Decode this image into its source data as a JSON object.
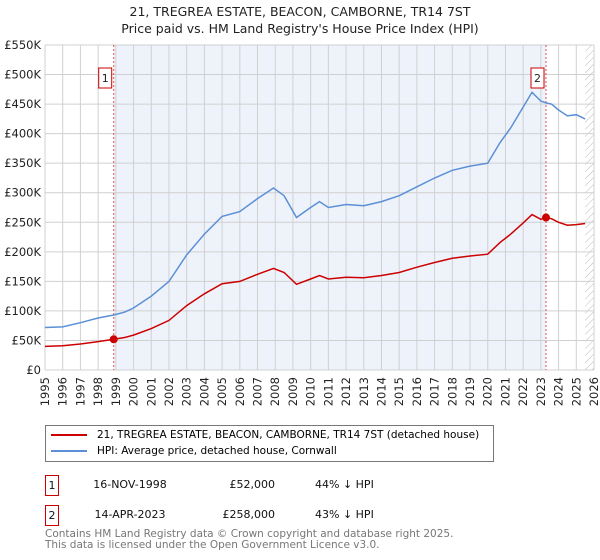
{
  "chart_data": {
    "type": "line",
    "title": "21, TREGREA ESTATE, BEACON, CAMBORNE, TR14 7ST",
    "subtitle": "Price paid vs. HM Land Registry's House Price Index (HPI)",
    "xlim": [
      1995,
      2026
    ],
    "ylim": [
      0,
      550000
    ],
    "x_ticks": [
      "1995",
      "1996",
      "1997",
      "1998",
      "1999",
      "2000",
      "2001",
      "2002",
      "2003",
      "2004",
      "2005",
      "2006",
      "2007",
      "2008",
      "2009",
      "2010",
      "2011",
      "2012",
      "2013",
      "2014",
      "2015",
      "2016",
      "2017",
      "2018",
      "2019",
      "2020",
      "2021",
      "2022",
      "2023",
      "2024",
      "2025",
      "2026"
    ],
    "y_ticks": [
      {
        "value": 0,
        "label": "£0"
      },
      {
        "value": 50000,
        "label": "£50K"
      },
      {
        "value": 100000,
        "label": "£100K"
      },
      {
        "value": 150000,
        "label": "£150K"
      },
      {
        "value": 200000,
        "label": "£200K"
      },
      {
        "value": 250000,
        "label": "£250K"
      },
      {
        "value": 300000,
        "label": "£300K"
      },
      {
        "value": 350000,
        "label": "£350K"
      },
      {
        "value": 400000,
        "label": "£400K"
      },
      {
        "value": 450000,
        "label": "£450K"
      },
      {
        "value": 500000,
        "label": "£500K"
      },
      {
        "value": 550000,
        "label": "£550K"
      }
    ],
    "grid": true,
    "series": [
      {
        "name": "21, TREGREA ESTATE, BEACON, CAMBORNE, TR14 7ST (detached house)",
        "color": "#cc0000",
        "x": [
          1995,
          1996,
          1997,
          1998,
          1998.88,
          1999.5,
          2000,
          2001,
          2002,
          2003,
          2004,
          2005,
          2006,
          2007,
          2007.9,
          2008.5,
          2009.2,
          2010,
          2010.5,
          2011,
          2012,
          2013,
          2014,
          2015,
          2016,
          2017,
          2018,
          2019,
          2020,
          2020.7,
          2021.3,
          2022,
          2022.5,
          2023,
          2023.29,
          2023.6,
          2024,
          2024.5,
          2025,
          2025.5
        ],
        "y": [
          40000,
          41000,
          44000,
          48000,
          52000,
          55000,
          59000,
          70000,
          84000,
          109000,
          129000,
          146000,
          150000,
          162000,
          172000,
          165000,
          145000,
          154000,
          160000,
          154000,
          157000,
          156000,
          160000,
          165000,
          174000,
          182000,
          189000,
          193000,
          196000,
          216000,
          230000,
          249000,
          263000,
          255000,
          258000,
          256000,
          250000,
          245000,
          246000,
          248000
        ]
      },
      {
        "name": "HPI: Average price, detached house, Cornwall",
        "color": "#5b8fd6",
        "x": [
          1995,
          1996,
          1997,
          1998,
          1998.88,
          1999.5,
          2000,
          2001,
          2002,
          2003,
          2004,
          2005,
          2006,
          2007,
          2007.9,
          2008.5,
          2009.2,
          2010,
          2010.5,
          2011,
          2012,
          2013,
          2014,
          2015,
          2016,
          2017,
          2018,
          2019,
          2020,
          2020.7,
          2021.3,
          2022,
          2022.5,
          2023,
          2023.29,
          2023.6,
          2024,
          2024.5,
          2025,
          2025.5
        ],
        "y": [
          72000,
          73000,
          80000,
          88000,
          93000,
          98000,
          105000,
          125000,
          150000,
          195000,
          230000,
          260000,
          268000,
          290000,
          308000,
          295000,
          258000,
          275000,
          285000,
          275000,
          280000,
          278000,
          285000,
          295000,
          310000,
          325000,
          338000,
          345000,
          350000,
          385000,
          410000,
          445000,
          470000,
          455000,
          452000,
          450000,
          440000,
          430000,
          432000,
          425000
        ]
      }
    ],
    "markers": [
      {
        "label": "1",
        "x": 1998.88,
        "y": 52000
      },
      {
        "label": "2",
        "x": 2023.29,
        "y": 258000
      }
    ]
  },
  "legend": [
    {
      "label": "21, TREGREA ESTATE, BEACON, CAMBORNE, TR14 7ST (detached house)",
      "color": "#cc0000"
    },
    {
      "label": "HPI: Average price, detached house, Cornwall",
      "color": "#5b8fd6"
    }
  ],
  "transactions": [
    {
      "num": "1",
      "date": "16-NOV-1998",
      "price": "£52,000",
      "hpi": "44% ↓ HPI"
    },
    {
      "num": "2",
      "date": "14-APR-2023",
      "price": "£258,000",
      "hpi": "43% ↓ HPI"
    }
  ],
  "footer": [
    "Contains HM Land Registry data © Crown copyright and database right 2025.",
    "This data is licensed under the Open Government Licence v3.0."
  ]
}
